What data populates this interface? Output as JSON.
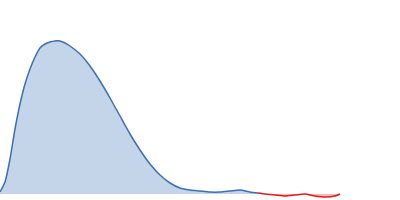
{
  "chart_data": {
    "type": "area",
    "x": [
      0,
      5,
      10,
      15,
      20,
      25,
      30,
      35,
      40,
      45,
      50,
      55,
      60,
      65,
      70,
      80,
      90,
      100,
      110,
      120,
      130,
      140,
      150,
      160,
      170,
      180,
      190,
      200,
      210,
      220,
      230,
      240,
      250,
      258,
      265,
      275,
      285,
      295,
      305,
      315,
      325,
      335,
      340
    ],
    "series": [
      {
        "color": "#3b6fb6",
        "values": [
          2,
          12,
          35,
          65,
          90,
          110,
          125,
          137,
          146,
          150,
          152,
          153,
          153,
          151,
          148,
          140,
          128,
          113,
          96,
          78,
          60,
          44,
          30,
          19,
          11,
          6,
          4,
          3,
          2,
          2,
          3,
          4,
          2,
          1,
          null,
          null,
          null,
          null,
          null,
          null,
          null,
          null,
          null
        ]
      },
      {
        "color": "#e31a1c",
        "values": [
          null,
          null,
          null,
          null,
          null,
          null,
          null,
          null,
          null,
          null,
          null,
          null,
          null,
          null,
          null,
          null,
          null,
          null,
          null,
          null,
          null,
          null,
          null,
          null,
          null,
          null,
          null,
          null,
          null,
          null,
          null,
          null,
          null,
          1,
          0,
          -1,
          -2,
          -1,
          0,
          -2,
          -3,
          -2,
          0
        ]
      }
    ],
    "xlim": [
      0,
      400
    ],
    "ylim": [
      -6,
      194
    ],
    "grid": false,
    "tick_labels": false
  }
}
